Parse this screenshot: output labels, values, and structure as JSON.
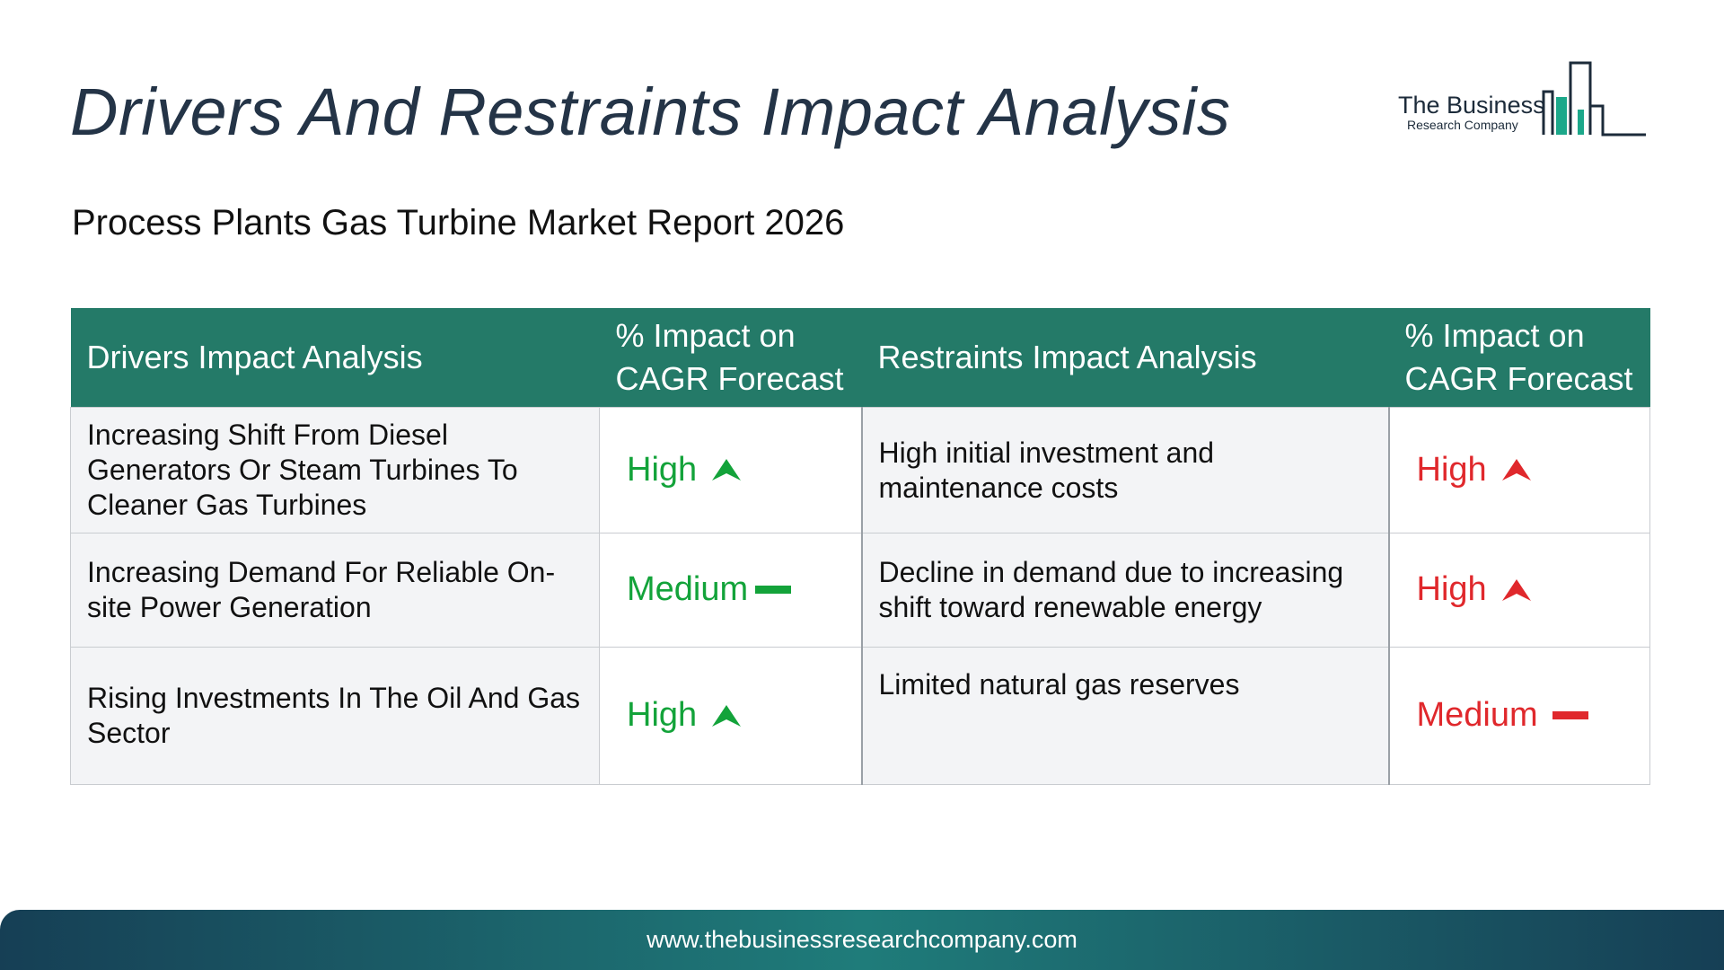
{
  "header": {
    "title": "Drivers And Restraints Impact Analysis",
    "subtitle": "Process Plants Gas Turbine Market Report 2026"
  },
  "logo": {
    "line1": "The Business",
    "line2": "Research Company",
    "color": "#1ca88a"
  },
  "table": {
    "headers": {
      "drivers": "Drivers Impact Analysis",
      "drivers_impact": "% Impact on CAGR Forecast",
      "restraints": "Restraints Impact Analysis",
      "restraints_impact": "% Impact on CAGR Forecast"
    },
    "rows": [
      {
        "driver": "Increasing Shift From Diesel Generators Or Steam Turbines To Cleaner Gas Turbines",
        "driver_impact": "High",
        "driver_icon": "arrow-up-icon",
        "restraint": "High initial investment and maintenance costs",
        "restraint_impact": "High",
        "restraint_icon": "arrow-up-icon"
      },
      {
        "driver": "Increasing Demand For Reliable On-site Power Generation",
        "driver_impact": "Medium",
        "driver_icon": "dash-icon",
        "restraint": "Decline in demand due to increasing shift toward renewable energy",
        "restraint_impact": "High",
        "restraint_icon": "arrow-up-icon"
      },
      {
        "driver": "Rising Investments In The Oil And Gas Sector",
        "driver_impact": "High",
        "driver_icon": "arrow-up-icon",
        "restraint": "Limited natural gas reserves",
        "restraint_impact": "Medium",
        "restraint_icon": "dash-icon"
      }
    ],
    "colors": {
      "header_bg": "#247a68",
      "driver_impact": "#13a33a",
      "restraint_impact": "#e0282c"
    }
  },
  "footer": {
    "url": "www.thebusinessresearchcompany.com"
  }
}
